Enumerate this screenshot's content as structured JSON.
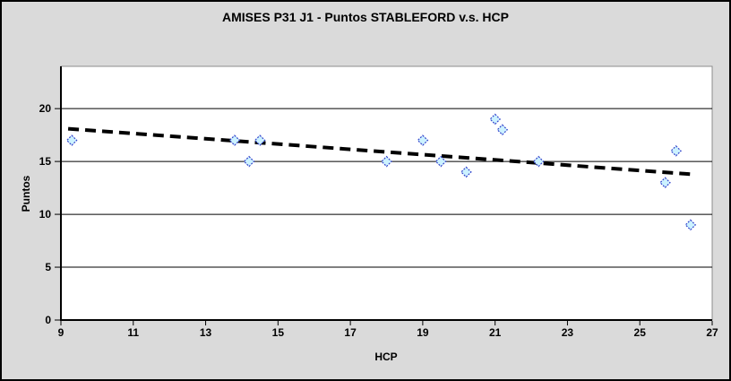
{
  "chart_data": {
    "type": "scatter",
    "title": "AMISES P31 J1 - Puntos STABLEFORD v.s. HCP",
    "xlabel": "HCP",
    "ylabel": "Puntos",
    "xlim": [
      9,
      27
    ],
    "ylim": [
      0,
      24
    ],
    "xticks": [
      9,
      11,
      13,
      15,
      17,
      19,
      21,
      23,
      25,
      27
    ],
    "yticks": [
      0,
      5,
      10,
      15,
      20
    ],
    "grid": "horizontal",
    "legend_position": "none",
    "colors": {
      "background": "#DADADA",
      "plot_background": "#FFFFFF",
      "plot_border": "#8C8C8C",
      "axis": "#000000",
      "gridline": "#000000",
      "tick_label": "#000000"
    },
    "series": [
      {
        "marker": "diamond",
        "marker_fill": "#CCF2FF",
        "marker_stroke": "#3344CC",
        "points": [
          [
            9.3,
            17
          ],
          [
            13.8,
            17
          ],
          [
            14.2,
            15
          ],
          [
            14.5,
            17
          ],
          [
            18,
            15
          ],
          [
            19,
            17
          ],
          [
            19.5,
            15
          ],
          [
            20.2,
            14
          ],
          [
            21,
            19
          ],
          [
            21.2,
            18
          ],
          [
            22.2,
            15
          ],
          [
            25.7,
            13
          ],
          [
            26,
            16
          ],
          [
            26.4,
            9
          ]
        ]
      }
    ],
    "trendline": {
      "type": "linear",
      "style": "dashed",
      "color": "#000000",
      "x_start": 9.2,
      "y_start": 18.1,
      "x_end": 26.4,
      "y_end": 13.8
    }
  }
}
